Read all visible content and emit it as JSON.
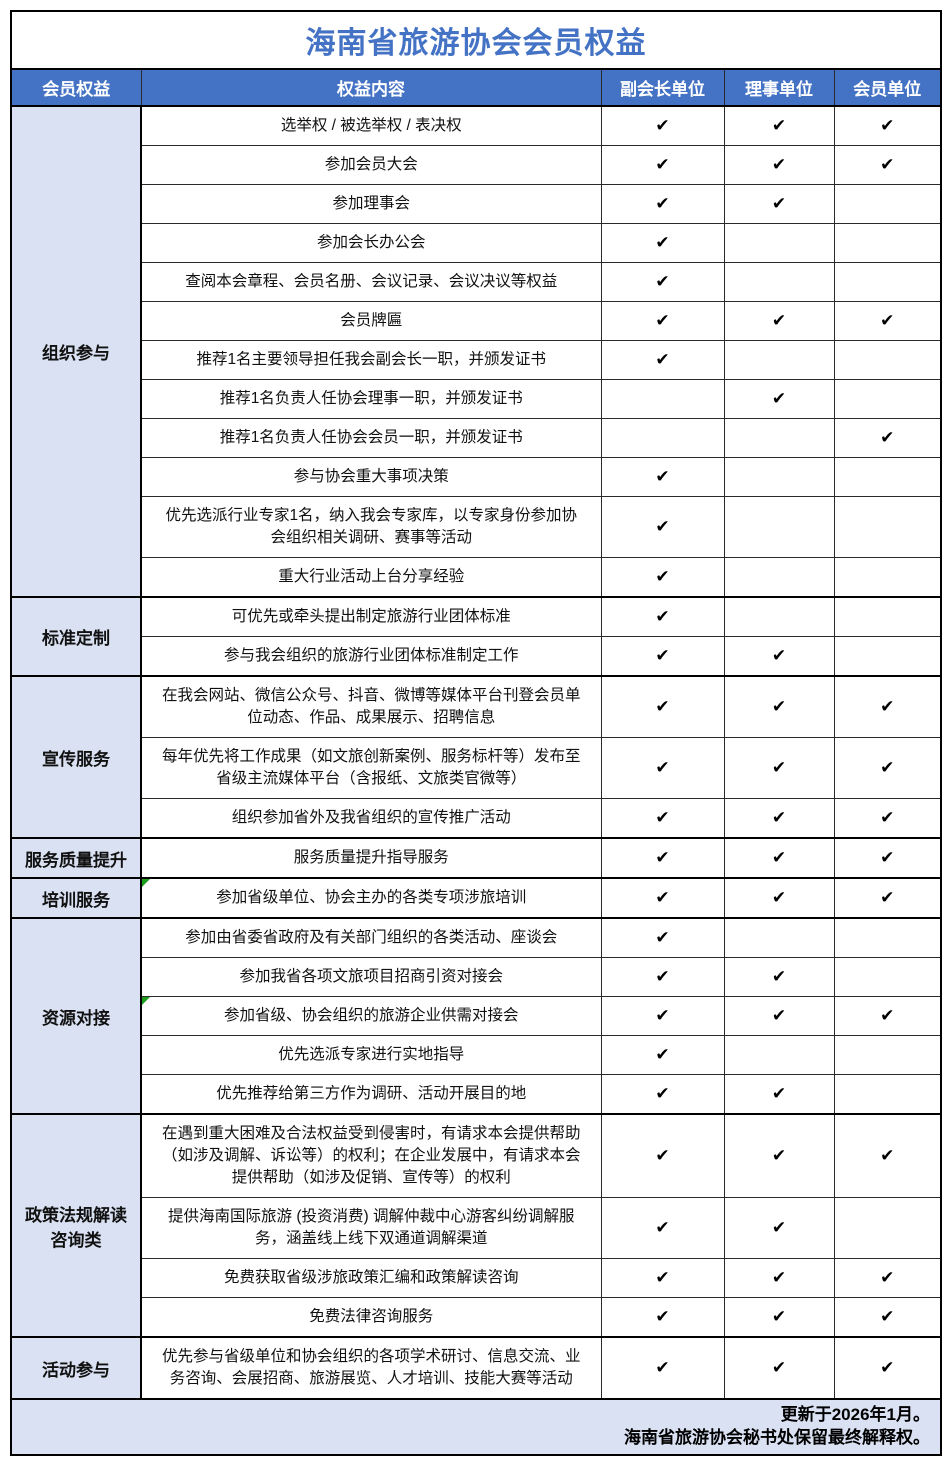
{
  "title": "海南省旅游协会会员权益",
  "colors": {
    "header_bg": "#4472C4",
    "header_text": "#FFFFFF",
    "category_bg": "#D9E1F2",
    "title_color": "#4472C4",
    "note_triangle": "#1E9E1E"
  },
  "table": {
    "headers": [
      "会员权益",
      "权益内容",
      "副会长单位",
      "理事单位",
      "会员单位"
    ],
    "check_mark": "✔",
    "sections": [
      {
        "category": "组织参与",
        "rows": [
          {
            "content": "选举权 / 被选举权 / 表决权",
            "checks": [
              true,
              true,
              true
            ]
          },
          {
            "content": "参加会员大会",
            "checks": [
              true,
              true,
              true
            ]
          },
          {
            "content": "参加理事会",
            "checks": [
              true,
              true,
              false
            ]
          },
          {
            "content": "参加会长办公会",
            "checks": [
              true,
              false,
              false
            ]
          },
          {
            "content": "查阅本会章程、会员名册、会议记录、会议决议等权益",
            "checks": [
              true,
              false,
              false
            ]
          },
          {
            "content": "会员牌匾",
            "checks": [
              true,
              true,
              true
            ]
          },
          {
            "content": "推荐1名主要领导担任我会副会长一职，并颁发证书",
            "checks": [
              true,
              false,
              false
            ]
          },
          {
            "content": "推荐1名负责人任协会理事一职，并颁发证书",
            "checks": [
              false,
              true,
              false
            ]
          },
          {
            "content": "推荐1名负责人任协会会员一职，并颁发证书",
            "checks": [
              false,
              false,
              true
            ]
          },
          {
            "content": "参与协会重大事项决策",
            "checks": [
              true,
              false,
              false
            ]
          },
          {
            "content": "优先选派行业专家1名，纳入我会专家库，以专家身份参加协会组织相关调研、赛事等活动",
            "checks": [
              true,
              false,
              false
            ]
          },
          {
            "content": "重大行业活动上台分享经验",
            "checks": [
              true,
              false,
              false
            ]
          }
        ]
      },
      {
        "category": "标准定制",
        "rows": [
          {
            "content": "可优先或牵头提出制定旅游行业团体标准",
            "checks": [
              true,
              false,
              false
            ]
          },
          {
            "content": "参与我会组织的旅游行业团体标准制定工作",
            "checks": [
              true,
              true,
              false
            ]
          }
        ]
      },
      {
        "category": "宣传服务",
        "rows": [
          {
            "content": "在我会网站、微信公众号、抖音、微博等媒体平台刊登会员单位动态、作品、成果展示、招聘信息",
            "checks": [
              true,
              true,
              true
            ]
          },
          {
            "content": "每年优先将工作成果（如文旅创新案例、服务标杆等）发布至省级主流媒体平台（含报纸、文旅类官微等）",
            "checks": [
              true,
              true,
              true
            ]
          },
          {
            "content": "组织参加省外及我省组织的宣传推广活动",
            "checks": [
              true,
              true,
              true
            ]
          }
        ]
      },
      {
        "category": "服务质量提升",
        "rows": [
          {
            "content": "服务质量提升指导服务",
            "checks": [
              true,
              true,
              true
            ]
          }
        ]
      },
      {
        "category": "培训服务",
        "rows": [
          {
            "content": "参加省级单位、协会主办的各类专项涉旅培训",
            "checks": [
              true,
              true,
              true
            ],
            "note": true
          }
        ]
      },
      {
        "category": "资源对接",
        "rows": [
          {
            "content": "参加由省委省政府及有关部门组织的各类活动、座谈会",
            "checks": [
              true,
              false,
              false
            ]
          },
          {
            "content": "参加我省各项文旅项目招商引资对接会",
            "checks": [
              true,
              true,
              false
            ]
          },
          {
            "content": "参加省级、协会组织的旅游企业供需对接会",
            "checks": [
              true,
              true,
              true
            ],
            "note": true
          },
          {
            "content": "优先选派专家进行实地指导",
            "checks": [
              true,
              false,
              false
            ]
          },
          {
            "content": "优先推荐给第三方作为调研、活动开展目的地",
            "checks": [
              true,
              true,
              false
            ]
          }
        ]
      },
      {
        "category": "政策法规解读咨询类",
        "rows": [
          {
            "content": "在遇到重大困难及合法权益受到侵害时，有请求本会提供帮助（如涉及调解、诉讼等）的权利；在企业发展中，有请求本会提供帮助（如涉及促销、宣传等）的权利",
            "checks": [
              true,
              true,
              true
            ]
          },
          {
            "content": "提供海南国际旅游 (投资消费) 调解仲裁中心游客纠纷调解服务，涵盖线上线下双通道调解渠道",
            "checks": [
              true,
              true,
              false
            ]
          },
          {
            "content": "免费获取省级涉旅政策汇编和政策解读咨询",
            "checks": [
              true,
              true,
              true
            ]
          },
          {
            "content": "免费法律咨询服务",
            "checks": [
              true,
              true,
              true
            ]
          }
        ]
      },
      {
        "category": "活动参与",
        "rows": [
          {
            "content": "优先参与省级单位和协会组织的各项学术研讨、信息交流、业务咨询、会展招商、旅游展览、人才培训、技能大赛等活动",
            "checks": [
              true,
              true,
              true
            ]
          }
        ]
      }
    ]
  },
  "footer": {
    "line1": "更新于2026年1月。",
    "line2": "海南省旅游协会秘书处保留最终解释权。"
  }
}
